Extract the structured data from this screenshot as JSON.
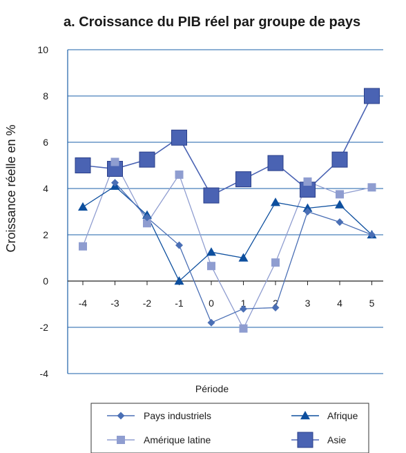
{
  "chart_data": {
    "type": "line",
    "title": "a. Croissance du PIB réel par groupe de pays",
    "xlabel": "Période",
    "ylabel": "Croissance réelle en %",
    "x": [
      -4,
      -3,
      -2,
      -1,
      0,
      1,
      2,
      3,
      4,
      5
    ],
    "x_tick_labels": [
      "-4",
      "-3",
      "-2",
      "-1",
      "0",
      "1",
      "2",
      "3",
      "4",
      "5"
    ],
    "ylim": [
      -4,
      10
    ],
    "y_ticks": [
      "10",
      "8",
      "6",
      "4",
      "2",
      "0",
      "-2",
      "-4"
    ],
    "grid": "horizontal",
    "legend_position": "bottom",
    "colors": {
      "industrial": "#4a6fb5",
      "africa": "#0d4f9e",
      "latam": "#8f9dd0",
      "asia": "#4a63b3",
      "axis": "#1a5fa8"
    },
    "series": [
      {
        "key": "industrial",
        "name": "Pays industriels",
        "marker": "diamond",
        "values": [
          null,
          4.25,
          2.75,
          1.55,
          -1.8,
          -1.2,
          -1.15,
          3.0,
          2.55,
          2.0
        ]
      },
      {
        "key": "africa",
        "name": "Afrique",
        "marker": "triangle",
        "values": [
          3.2,
          4.1,
          2.85,
          0.0,
          1.25,
          1.0,
          3.4,
          3.15,
          3.3,
          2.0
        ]
      },
      {
        "key": "latam",
        "name": "Amérique latine",
        "marker": "square-small",
        "values": [
          1.5,
          5.15,
          2.5,
          4.6,
          0.65,
          -2.05,
          0.8,
          4.3,
          3.75,
          4.05
        ]
      },
      {
        "key": "asia",
        "name": "Asie",
        "marker": "square-large",
        "values": [
          5.0,
          4.85,
          5.25,
          6.2,
          3.7,
          4.4,
          5.1,
          3.95,
          5.25,
          8.0
        ]
      }
    ]
  }
}
